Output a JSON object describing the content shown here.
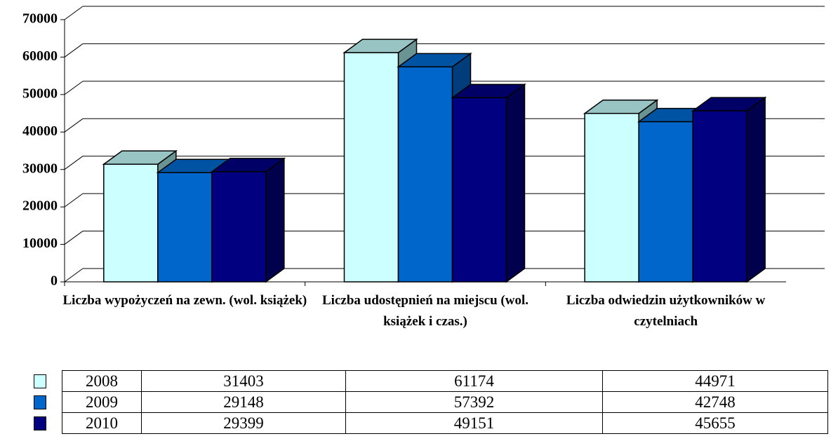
{
  "chart_data": {
    "type": "bar3d",
    "categories": [
      "Liczba wypożyczeń na zewn. (wol. książek)",
      "Liczba udostępnień na miejscu (wol. książek i czas.)",
      "Liczba odwiedzin użytkowników w czytelniach"
    ],
    "series": [
      {
        "name": "2008",
        "color": "#ccffff",
        "values": [
          31403,
          61174,
          44971
        ]
      },
      {
        "name": "2009",
        "color": "#0066cc",
        "values": [
          29148,
          57392,
          42748
        ]
      },
      {
        "name": "2010",
        "color": "#000080",
        "values": [
          29399,
          49151,
          45655
        ]
      }
    ],
    "ylim": [
      0,
      70000
    ],
    "yticks": [
      0,
      10000,
      20000,
      30000,
      40000,
      50000,
      60000,
      70000
    ],
    "grid": true
  }
}
